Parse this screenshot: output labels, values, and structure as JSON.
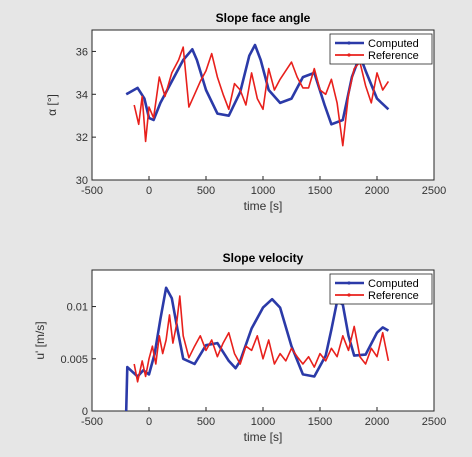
{
  "chart_data": [
    {
      "type": "line",
      "title": "Slope face angle",
      "xlabel": "time [s]",
      "ylabel": "α [°]",
      "xlim": [
        -500,
        2500
      ],
      "ylim": [
        30,
        37
      ],
      "xticks": [
        "-500",
        "0",
        "500",
        "1000",
        "1500",
        "2000",
        "2500"
      ],
      "xtick_values": [
        -500,
        0,
        500,
        1000,
        1500,
        2000,
        2500
      ],
      "yticks": [
        "30",
        "32",
        "34",
        "36"
      ],
      "ytick_values": [
        30,
        32,
        34,
        36
      ],
      "grid": false,
      "legend_position": "top-right",
      "series": [
        {
          "name": "Computed",
          "color": "#2b3aa8",
          "x": [
            -200,
            -100,
            -40,
            0,
            40,
            100,
            200,
            300,
            380,
            420,
            500,
            600,
            700,
            800,
            880,
            930,
            980,
            1050,
            1150,
            1250,
            1350,
            1450,
            1540,
            1600,
            1700,
            1780,
            1850,
            1900,
            2000,
            2100
          ],
          "y": [
            34.0,
            34.3,
            33.8,
            32.9,
            32.8,
            33.6,
            34.6,
            35.6,
            36.1,
            35.6,
            34.2,
            33.1,
            33.0,
            34.1,
            35.8,
            36.3,
            35.6,
            34.2,
            33.6,
            33.8,
            34.8,
            35.0,
            33.5,
            32.6,
            32.8,
            34.8,
            35.8,
            35.1,
            33.8,
            33.3
          ]
        },
        {
          "name": "Reference",
          "color": "#e8201c",
          "x": [
            -130,
            -90,
            -60,
            -30,
            0,
            40,
            90,
            140,
            200,
            260,
            300,
            350,
            400,
            450,
            500,
            550,
            600,
            650,
            700,
            750,
            800,
            850,
            900,
            950,
            1000,
            1050,
            1100,
            1150,
            1200,
            1250,
            1300,
            1350,
            1400,
            1450,
            1500,
            1550,
            1600,
            1650,
            1700,
            1750,
            1800,
            1850,
            1900,
            1950,
            2000,
            2050,
            2100
          ],
          "y": [
            33.5,
            32.6,
            33.9,
            31.8,
            33.4,
            32.9,
            34.8,
            33.9,
            35.0,
            35.6,
            36.2,
            33.4,
            34.0,
            34.6,
            35.1,
            35.9,
            34.8,
            34.0,
            33.3,
            34.5,
            34.2,
            33.5,
            35.0,
            33.8,
            33.3,
            35.2,
            34.2,
            34.7,
            35.1,
            35.5,
            34.8,
            34.3,
            34.3,
            35.2,
            34.2,
            34.0,
            34.7,
            33.6,
            31.6,
            34.0,
            35.2,
            35.5,
            34.4,
            33.6,
            35.0,
            34.2,
            34.6
          ]
        }
      ]
    },
    {
      "type": "line",
      "title": "Slope velocity",
      "xlabel": "time [s]",
      "ylabel": "u' [m/s]",
      "xlim": [
        -500,
        2500
      ],
      "ylim": [
        0,
        0.0135
      ],
      "xticks": [
        "-500",
        "0",
        "500",
        "1000",
        "1500",
        "2000",
        "2500"
      ],
      "xtick_values": [
        -500,
        0,
        500,
        1000,
        1500,
        2000,
        2500
      ],
      "yticks": [
        "0",
        "0.005",
        "0.01"
      ],
      "ytick_values": [
        0,
        0.005,
        0.01
      ],
      "grid": false,
      "legend_position": "top-right",
      "series": [
        {
          "name": "Computed",
          "color": "#2b3aa8",
          "x": [
            -200,
            -190,
            -150,
            -100,
            -50,
            0,
            50,
            100,
            150,
            200,
            250,
            300,
            400,
            500,
            600,
            700,
            760,
            800,
            900,
            1000,
            1080,
            1150,
            1250,
            1350,
            1450,
            1550,
            1600,
            1650,
            1700,
            1750,
            1800,
            1900,
            2000,
            2050,
            2100
          ],
          "y": [
            0.0,
            0.0042,
            0.0038,
            0.0033,
            0.0039,
            0.0035,
            0.0055,
            0.0088,
            0.0118,
            0.0108,
            0.0078,
            0.005,
            0.0045,
            0.0063,
            0.0065,
            0.0048,
            0.0041,
            0.0048,
            0.0079,
            0.0099,
            0.0107,
            0.0099,
            0.0062,
            0.0035,
            0.0033,
            0.0053,
            0.0078,
            0.0105,
            0.0102,
            0.0072,
            0.0053,
            0.0054,
            0.0075,
            0.008,
            0.0077
          ]
        },
        {
          "name": "Reference",
          "color": "#e8201c",
          "x": [
            -130,
            -100,
            -60,
            -30,
            0,
            30,
            60,
            90,
            120,
            150,
            180,
            210,
            240,
            270,
            300,
            350,
            400,
            450,
            500,
            550,
            600,
            650,
            700,
            750,
            800,
            850,
            900,
            950,
            1000,
            1050,
            1100,
            1150,
            1200,
            1250,
            1300,
            1350,
            1400,
            1450,
            1500,
            1550,
            1600,
            1650,
            1700,
            1750,
            1800,
            1850,
            1900,
            1950,
            2000,
            2050,
            2100
          ],
          "y": [
            0.0045,
            0.0028,
            0.0048,
            0.0033,
            0.005,
            0.0062,
            0.0045,
            0.0072,
            0.0055,
            0.0068,
            0.0092,
            0.0065,
            0.0082,
            0.011,
            0.0072,
            0.0051,
            0.0062,
            0.0072,
            0.0058,
            0.0068,
            0.0052,
            0.0065,
            0.0075,
            0.0055,
            0.0045,
            0.0062,
            0.0058,
            0.0072,
            0.005,
            0.0068,
            0.0045,
            0.0055,
            0.0048,
            0.006,
            0.0052,
            0.0045,
            0.0052,
            0.0042,
            0.0055,
            0.0048,
            0.006,
            0.0052,
            0.0072,
            0.0058,
            0.0081,
            0.0052,
            0.0045,
            0.006,
            0.0052,
            0.0075,
            0.0048
          ]
        }
      ]
    }
  ]
}
